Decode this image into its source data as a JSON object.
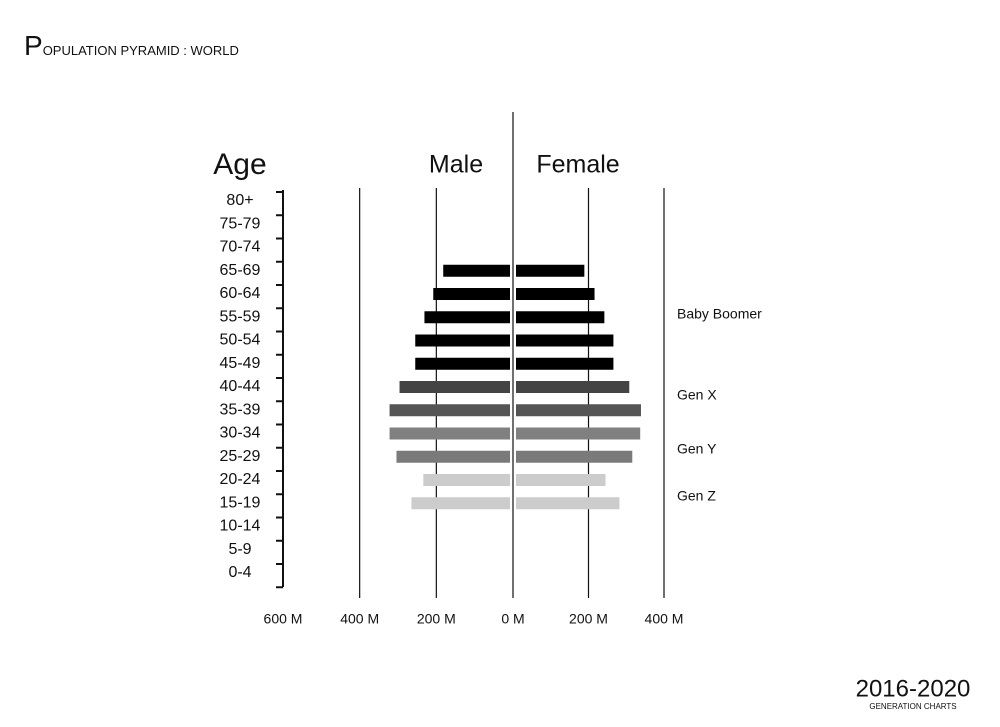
{
  "chart_data": {
    "type": "pyramid",
    "title": "POPULATION PYRAMID : WORLD",
    "y_label": "Age",
    "categories": [
      "80+",
      "75-79",
      "70-74",
      "65-69",
      "60-64",
      "55-59",
      "50-54",
      "45-49",
      "40-44",
      "35-39",
      "30-34",
      "25-29",
      "20-24",
      "15-19",
      "10-14",
      "5-9",
      "0-4"
    ],
    "series": [
      {
        "name": "Male",
        "values": [
          null,
          null,
          null,
          182,
          208,
          231,
          255,
          255,
          296,
          322,
          322,
          304,
          234,
          265,
          null,
          null,
          null
        ]
      },
      {
        "name": "Female",
        "values": [
          null,
          null,
          null,
          189,
          216,
          242,
          266,
          266,
          308,
          339,
          337,
          316,
          245,
          282,
          null,
          null,
          null
        ]
      }
    ],
    "bar_colors": [
      null,
      null,
      null,
      "#000000",
      "#000000",
      "#000000",
      "#000000",
      "#000000",
      "#444444",
      "#555555",
      "#808080",
      "#7a7a7a",
      "#cccccc",
      "#cccccc",
      null,
      null,
      null
    ],
    "xlim": [
      600,
      0
    ],
    "xticks": [
      {
        "value": 600,
        "label": "600 M"
      },
      {
        "value": 400,
        "label": "400 M"
      },
      {
        "value": 200,
        "label": "200 M"
      },
      {
        "value": 0,
        "label": "0 M"
      }
    ],
    "x2lim": [
      0,
      400
    ],
    "x2ticks": [
      {
        "value": 200,
        "label": "200 M"
      },
      {
        "value": 400,
        "label": "400 M"
      }
    ],
    "grid": true,
    "annotations": [
      "Baby Boomer",
      "Gen X",
      "Gen Y",
      "Gen Z"
    ],
    "period": "2016-2020",
    "footer": "GENERATION CHARTS"
  }
}
